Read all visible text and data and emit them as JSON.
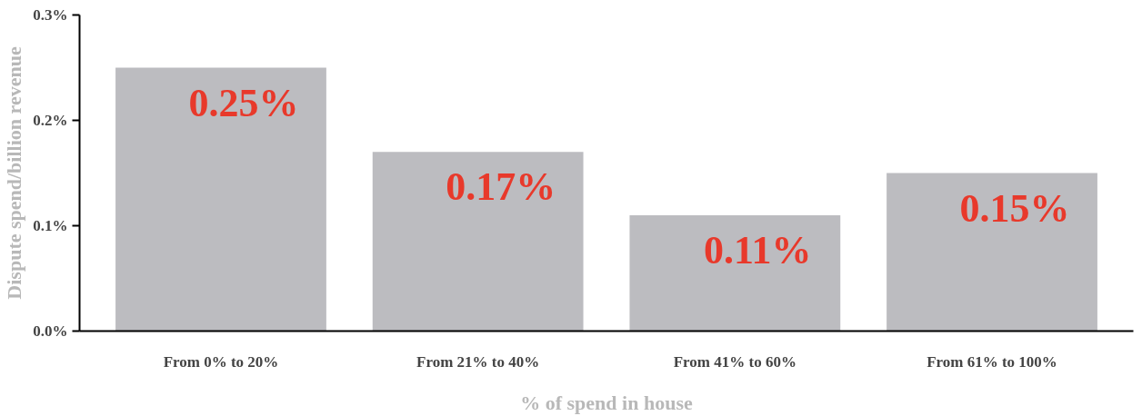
{
  "chart_data": {
    "type": "bar",
    "xlabel": "% of spend in house",
    "ylabel": "Dispute spend/billion revenue",
    "categories": [
      "From 0% to 20%",
      "From 21% to 40%",
      "From 41% to 60%",
      "From 61% to 100%"
    ],
    "values": [
      0.25,
      0.17,
      0.11,
      0.15
    ],
    "value_labels": [
      "0.25%",
      "0.17%",
      "0.11%",
      "0.15%"
    ],
    "color": "#bcbcc0",
    "ylim": [
      0,
      0.3
    ],
    "yticks": [
      {
        "value": 0,
        "label": "0.0%"
      },
      {
        "value": 0.1,
        "label": "0.1%"
      },
      {
        "value": 0.2,
        "label": "0.2%"
      },
      {
        "value": 0.3,
        "label": "0.3%"
      }
    ],
    "grid": false
  }
}
